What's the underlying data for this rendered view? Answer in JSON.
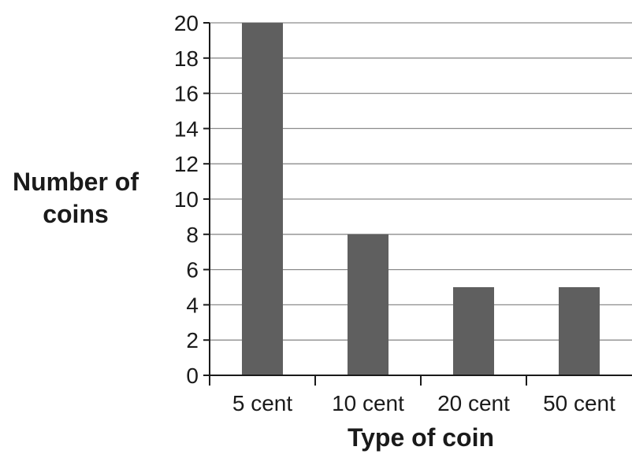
{
  "chart_data": {
    "type": "bar",
    "categories": [
      "5 cent",
      "10 cent",
      "20 cent",
      "50 cent"
    ],
    "values": [
      20,
      8,
      5,
      5
    ],
    "xlabel": "Type of coin",
    "ylabel_lines": [
      "Number of",
      "coins"
    ],
    "ylim": [
      0,
      20
    ],
    "ytick_step": 2,
    "grid": true,
    "colors": {
      "bar": "#5f5f5f",
      "grid": "#8c8c8c",
      "axis": "#1a1a1a"
    }
  }
}
